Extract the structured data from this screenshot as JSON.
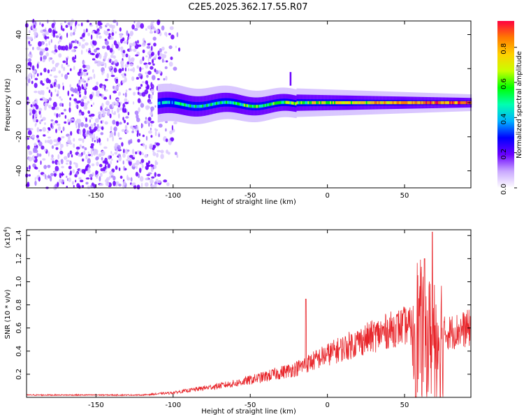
{
  "title": "C2E5.2025.362.17.55.R07",
  "colors": {
    "snr_line": "#e8262b",
    "axis": "#000000",
    "colormap": [
      "#ffffff",
      "#c9a7ff",
      "#6a00ff",
      "#0000ff",
      "#00b2ff",
      "#00ffb0",
      "#00ff00",
      "#c8ff00",
      "#ffd000",
      "#ff7a00",
      "#ff0040"
    ]
  },
  "chart_data": [
    {
      "type": "heatmap",
      "name": "spectrogram",
      "xlabel": "Height of straight line (km)",
      "ylabel": "Frequency (Hz)",
      "xlim": [
        -195,
        93
      ],
      "ylim": [
        -50,
        48
      ],
      "xticks": [
        -150,
        -100,
        -50,
        0,
        50
      ],
      "yticks": [
        -40,
        -20,
        0,
        20,
        40
      ],
      "features": {
        "noise_region_x": [
          -195,
          -105
        ],
        "signal_band_start_x": -110,
        "signal_band_center_freq": 0,
        "signal_band_halfwidth_hz": 5,
        "spike": {
          "x": -24,
          "freq_range": [
            10,
            18
          ]
        }
      },
      "colorbar": {
        "label": "Normalized spectral amplitude",
        "range": [
          0.0,
          0.95
        ],
        "ticks": [
          "0.0",
          "0.2",
          "0.4",
          "0.6",
          "0.8"
        ]
      }
    },
    {
      "type": "line",
      "name": "snr",
      "xlabel": "Height of straight line (km)",
      "ylabel": "SNR (10 * v/v)",
      "yscale_label": "(x10",
      "yscale_exp": "4",
      "yscale_close": ")",
      "xlim": [
        -195,
        93
      ],
      "ylim": [
        0.0,
        1.45
      ],
      "xticks": [
        -150,
        -100,
        -50,
        0,
        50
      ],
      "yticks": [
        0.2,
        0.4,
        0.6,
        0.8,
        1.0,
        1.2,
        1.4
      ],
      "ytick_labels": [
        "0.2",
        "0.4",
        "0.6",
        "0.8",
        "1.0",
        "1.2",
        "1.4"
      ],
      "envelope_x": [
        -195,
        -120,
        -100,
        -80,
        -60,
        -40,
        -20,
        0,
        20,
        40,
        50,
        58,
        65,
        75,
        85,
        93
      ],
      "envelope_y": [
        0.02,
        0.02,
        0.04,
        0.08,
        0.12,
        0.18,
        0.25,
        0.37,
        0.48,
        0.58,
        0.62,
        0.6,
        0.5,
        0.55,
        0.58,
        0.6
      ],
      "spikes": [
        {
          "x": -14,
          "y": 0.85
        },
        {
          "x": 63,
          "y": 1.2
        },
        {
          "x": 68,
          "y": 1.43
        }
      ]
    }
  ]
}
